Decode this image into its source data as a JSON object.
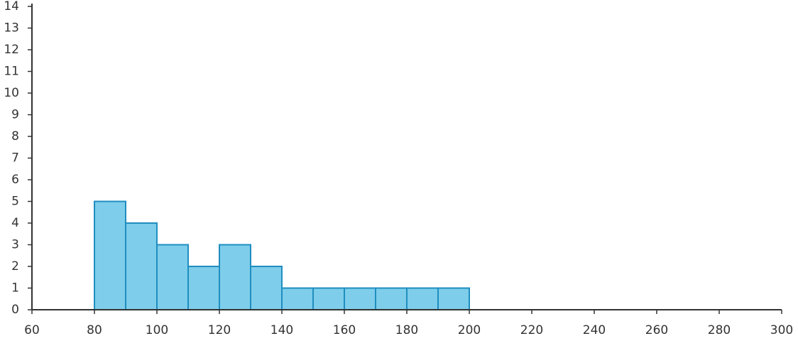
{
  "chart_data": {
    "type": "histogram",
    "bins": [
      80,
      90,
      100,
      110,
      120,
      130,
      140,
      150,
      160,
      170,
      180,
      190,
      200
    ],
    "values": [
      5,
      4,
      3,
      2,
      3,
      2,
      1,
      1,
      1,
      1,
      1,
      1
    ],
    "color": "#7ecdea",
    "edge_color": "#1f8ec0",
    "xlim": [
      60,
      300
    ],
    "xticks": [
      60,
      80,
      100,
      120,
      140,
      160,
      180,
      200,
      220,
      240,
      260,
      280,
      300
    ],
    "ylim": [
      0,
      14
    ],
    "yticks": [
      0,
      1,
      2,
      3,
      4,
      5,
      6,
      7,
      8,
      9,
      10,
      11,
      12,
      13,
      14
    ]
  }
}
